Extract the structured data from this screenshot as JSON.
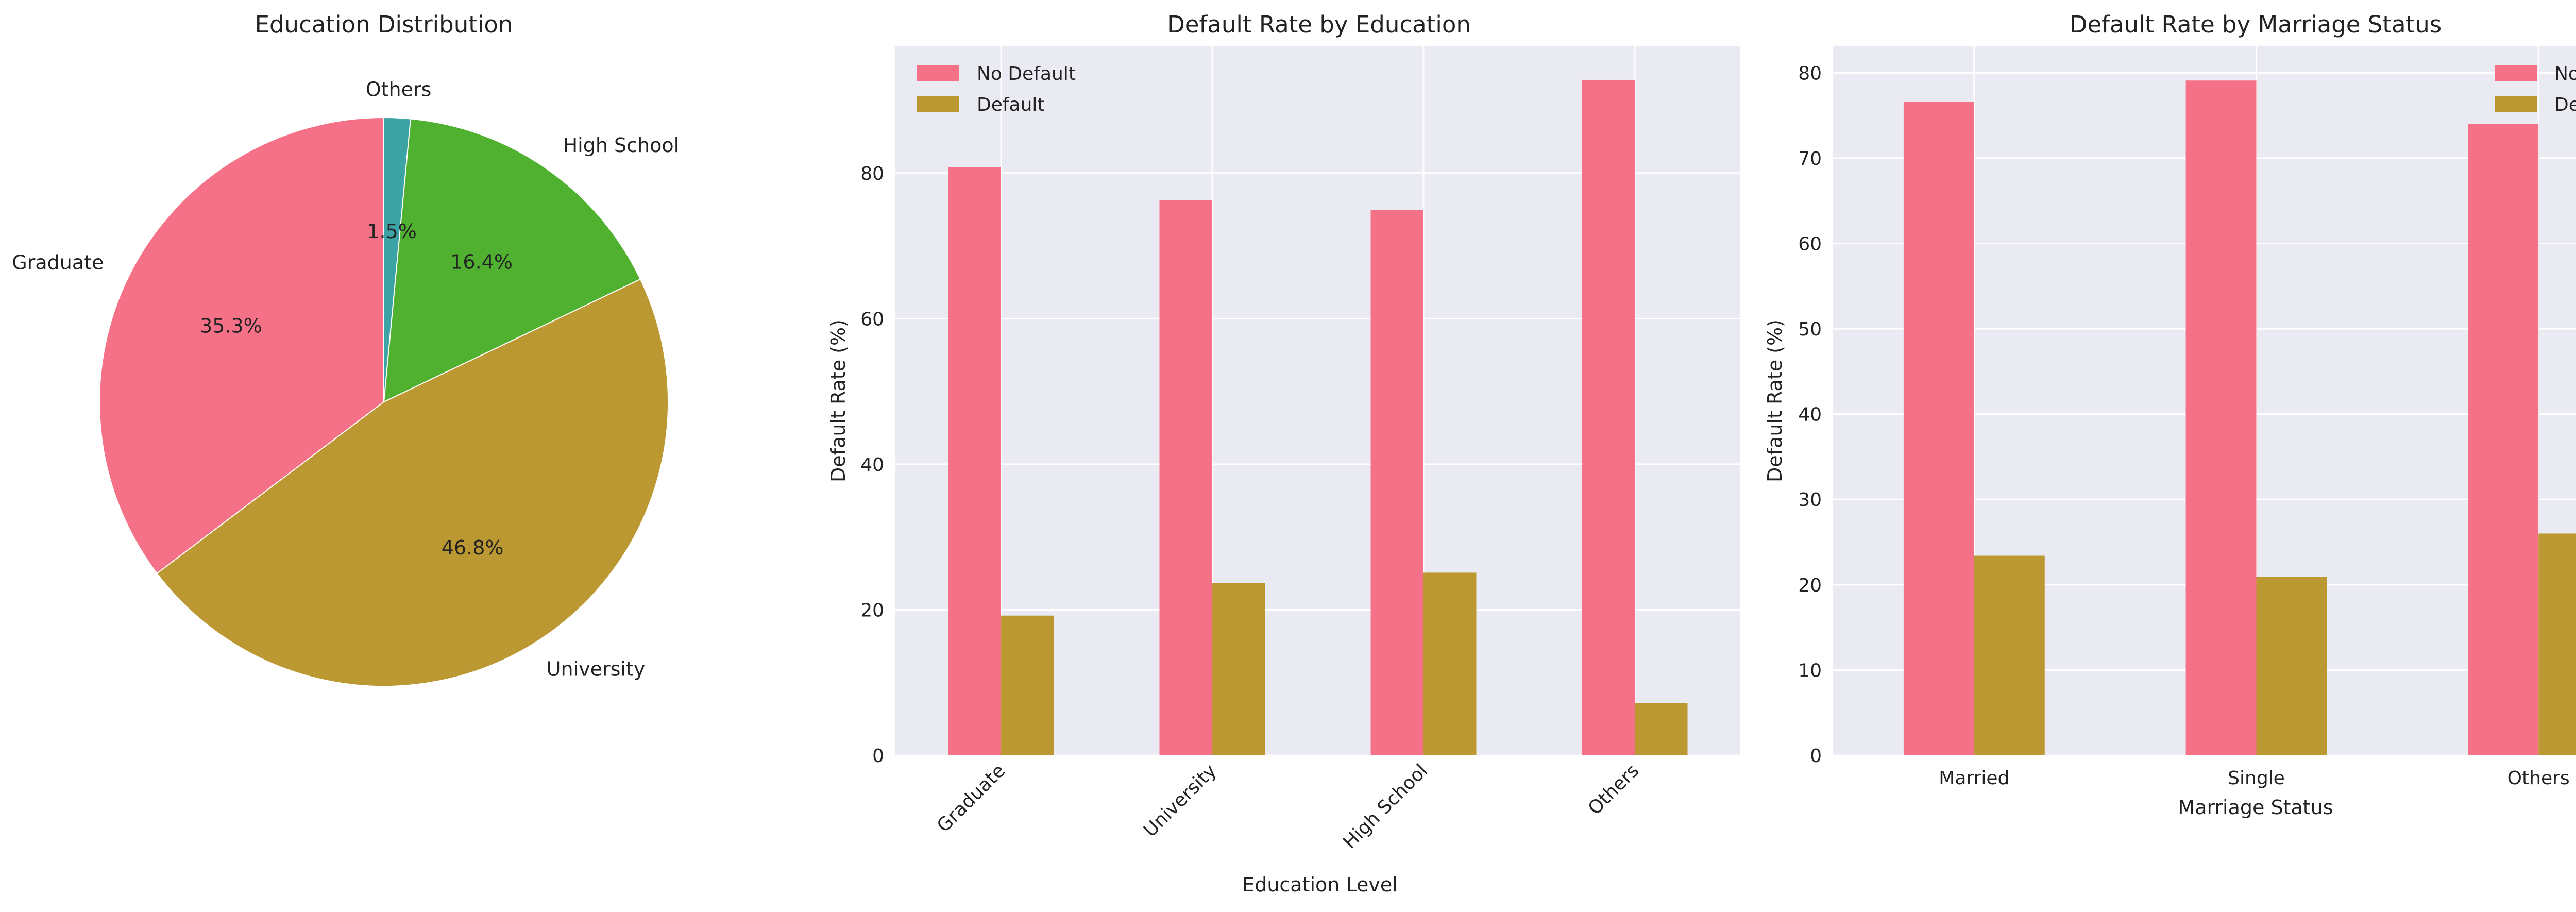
{
  "colors": {
    "no_default": "#f47188",
    "default": "#bb9832",
    "graduate": "#f47188",
    "university": "#bb9832",
    "high_school": "#50b131",
    "others": "#3ba3a4"
  },
  "chart_data": [
    {
      "type": "pie",
      "title": "Education Distribution",
      "categories": [
        "Graduate",
        "University",
        "High School",
        "Others"
      ],
      "values": [
        35.3,
        46.8,
        16.4,
        1.5
      ],
      "value_labels": [
        "35.3%",
        "46.8%",
        "16.4%",
        "1.5%"
      ],
      "start_angle_deg": 90,
      "direction": "counterclockwise"
    },
    {
      "type": "bar",
      "title": "Default Rate by Education",
      "xlabel": "Education Level",
      "ylabel": "Default Rate (%)",
      "categories": [
        "Graduate",
        "University",
        "High School",
        "Others"
      ],
      "series": [
        {
          "name": "No Default",
          "values": [
            80.8,
            76.3,
            74.9,
            92.8
          ]
        },
        {
          "name": "Default",
          "values": [
            19.2,
            23.7,
            25.1,
            7.2
          ]
        }
      ],
      "ylim": [
        0,
        97.4
      ],
      "yticks": [
        0,
        20,
        40,
        60,
        80
      ],
      "legend": "top-left",
      "xtick_rotation": 45
    },
    {
      "type": "bar",
      "title": "Default Rate by Marriage Status",
      "xlabel": "Marriage Status",
      "ylabel": "Default Rate (%)",
      "categories": [
        "Married",
        "Single",
        "Others"
      ],
      "series": [
        {
          "name": "No Default",
          "values": [
            76.6,
            79.1,
            74.0
          ]
        },
        {
          "name": "Default",
          "values": [
            23.4,
            20.9,
            26.0
          ]
        }
      ],
      "ylim": [
        0,
        83.1
      ],
      "yticks": [
        0,
        10,
        20,
        30,
        40,
        50,
        60,
        70,
        80
      ],
      "legend": "top-right",
      "xtick_rotation": 0
    }
  ]
}
